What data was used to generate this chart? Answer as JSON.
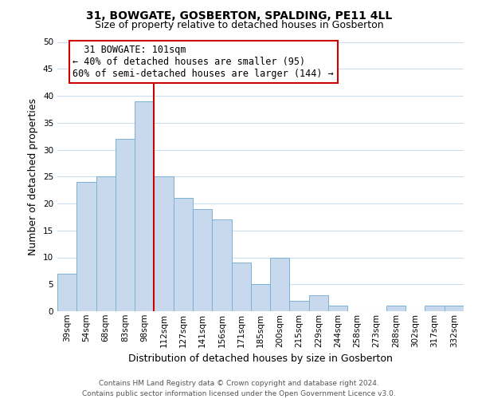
{
  "title": "31, BOWGATE, GOSBERTON, SPALDING, PE11 4LL",
  "subtitle": "Size of property relative to detached houses in Gosberton",
  "xlabel": "Distribution of detached houses by size in Gosberton",
  "ylabel": "Number of detached properties",
  "categories": [
    "39sqm",
    "54sqm",
    "68sqm",
    "83sqm",
    "98sqm",
    "112sqm",
    "127sqm",
    "141sqm",
    "156sqm",
    "171sqm",
    "185sqm",
    "200sqm",
    "215sqm",
    "229sqm",
    "244sqm",
    "258sqm",
    "273sqm",
    "288sqm",
    "302sqm",
    "317sqm",
    "332sqm"
  ],
  "values": [
    7,
    24,
    25,
    32,
    39,
    25,
    21,
    19,
    17,
    9,
    5,
    10,
    2,
    3,
    1,
    0,
    0,
    1,
    0,
    1,
    1
  ],
  "bar_color": "#c8d9ee",
  "bar_edge_color": "#7ab3d4",
  "vline_color": "#cc0000",
  "vline_x": 4.5,
  "ylim": [
    0,
    50
  ],
  "yticks": [
    0,
    5,
    10,
    15,
    20,
    25,
    30,
    35,
    40,
    45,
    50
  ],
  "annotation_title": "31 BOWGATE: 101sqm",
  "annotation_line1": "← 40% of detached houses are smaller (95)",
  "annotation_line2": "60% of semi-detached houses are larger (144) →",
  "annotation_box_color": "#ffffff",
  "annotation_box_edge": "#cc0000",
  "footer1": "Contains HM Land Registry data © Crown copyright and database right 2024.",
  "footer2": "Contains public sector information licensed under the Open Government Licence v3.0.",
  "background_color": "#ffffff",
  "grid_color": "#ccdff0",
  "title_fontsize": 10,
  "subtitle_fontsize": 9,
  "ylabel_fontsize": 9,
  "xlabel_fontsize": 9,
  "tick_fontsize": 7.5,
  "footer_fontsize": 6.5,
  "annot_fontsize": 8.5
}
